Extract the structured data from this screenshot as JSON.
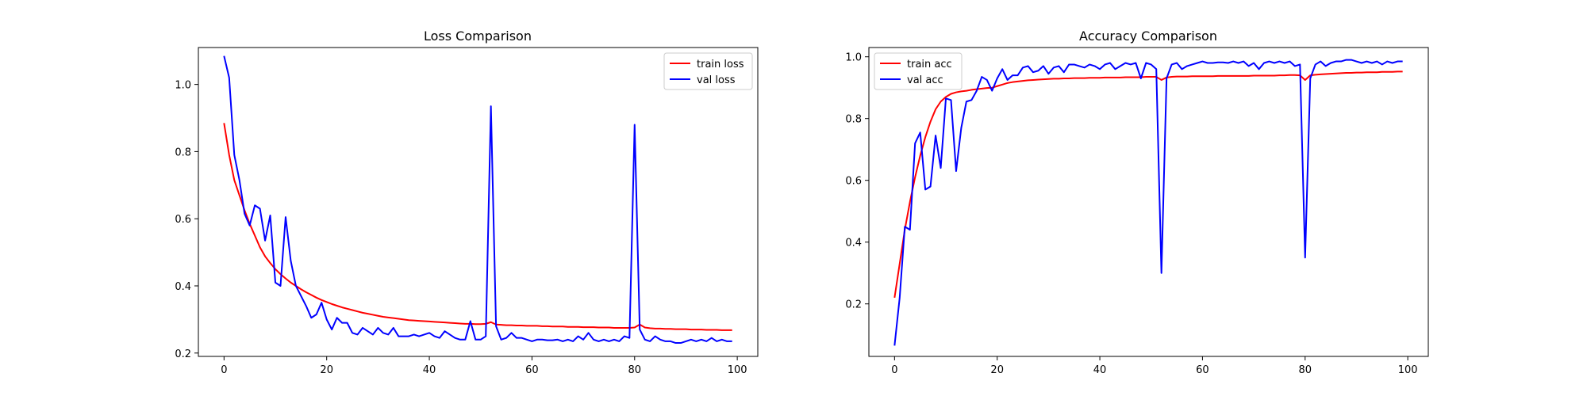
{
  "chart_data": [
    {
      "type": "line",
      "title": "Loss Comparison",
      "xlabel": "",
      "ylabel": "",
      "xlim": [
        -5,
        104
      ],
      "ylim": [
        0.19,
        1.11
      ],
      "xticks": [
        0,
        20,
        40,
        60,
        80,
        100
      ],
      "yticks": [
        0.2,
        0.4,
        0.6,
        0.8,
        1.0
      ],
      "xtick_labels": [
        "0",
        "20",
        "40",
        "60",
        "80",
        "100"
      ],
      "ytick_labels": [
        "0.2",
        "0.4",
        "0.6",
        "0.8",
        "1.0"
      ],
      "grid": false,
      "legend_position": "upper right",
      "series": [
        {
          "name": "train loss",
          "color": "#ff0000",
          "values": [
            0.885,
            0.79,
            0.715,
            0.67,
            0.625,
            0.585,
            0.55,
            0.515,
            0.488,
            0.468,
            0.45,
            0.435,
            0.422,
            0.41,
            0.4,
            0.39,
            0.381,
            0.373,
            0.365,
            0.358,
            0.352,
            0.346,
            0.341,
            0.336,
            0.332,
            0.328,
            0.324,
            0.32,
            0.317,
            0.314,
            0.311,
            0.308,
            0.306,
            0.304,
            0.302,
            0.3,
            0.298,
            0.297,
            0.296,
            0.295,
            0.294,
            0.293,
            0.292,
            0.291,
            0.29,
            0.289,
            0.288,
            0.287,
            0.287,
            0.286,
            0.286,
            0.287,
            0.292,
            0.285,
            0.284,
            0.283,
            0.283,
            0.282,
            0.282,
            0.281,
            0.281,
            0.281,
            0.28,
            0.28,
            0.279,
            0.279,
            0.279,
            0.278,
            0.278,
            0.278,
            0.277,
            0.277,
            0.277,
            0.276,
            0.276,
            0.276,
            0.275,
            0.275,
            0.275,
            0.275,
            0.276,
            0.285,
            0.276,
            0.274,
            0.273,
            0.273,
            0.272,
            0.272,
            0.271,
            0.271,
            0.271,
            0.27,
            0.27,
            0.27,
            0.269,
            0.269,
            0.269,
            0.268,
            0.268,
            0.268
          ]
        },
        {
          "name": "val loss",
          "color": "#0000ff",
          "values": [
            1.085,
            1.02,
            0.79,
            0.715,
            0.615,
            0.58,
            0.64,
            0.63,
            0.535,
            0.61,
            0.41,
            0.4,
            0.605,
            0.475,
            0.4,
            0.37,
            0.34,
            0.305,
            0.315,
            0.35,
            0.3,
            0.27,
            0.305,
            0.29,
            0.29,
            0.26,
            0.255,
            0.275,
            0.265,
            0.255,
            0.275,
            0.26,
            0.255,
            0.275,
            0.25,
            0.25,
            0.25,
            0.255,
            0.25,
            0.255,
            0.26,
            0.25,
            0.245,
            0.265,
            0.255,
            0.245,
            0.24,
            0.24,
            0.295,
            0.24,
            0.24,
            0.25,
            0.935,
            0.28,
            0.24,
            0.245,
            0.26,
            0.245,
            0.245,
            0.24,
            0.235,
            0.24,
            0.24,
            0.238,
            0.238,
            0.24,
            0.235,
            0.24,
            0.235,
            0.25,
            0.24,
            0.26,
            0.24,
            0.235,
            0.24,
            0.235,
            0.24,
            0.235,
            0.25,
            0.245,
            0.88,
            0.27,
            0.24,
            0.235,
            0.25,
            0.24,
            0.235,
            0.235,
            0.23,
            0.23,
            0.235,
            0.24,
            0.235,
            0.24,
            0.235,
            0.245,
            0.235,
            0.24,
            0.235,
            0.235
          ]
        }
      ]
    },
    {
      "type": "line",
      "title": "Accuracy Comparison",
      "xlabel": "",
      "ylabel": "",
      "xlim": [
        -5,
        104
      ],
      "ylim": [
        0.03,
        1.03
      ],
      "xticks": [
        0,
        20,
        40,
        60,
        80,
        100
      ],
      "yticks": [
        0.2,
        0.4,
        0.6,
        0.8,
        1.0
      ],
      "xtick_labels": [
        "0",
        "20",
        "40",
        "60",
        "80",
        "100"
      ],
      "ytick_labels": [
        "0.2",
        "0.4",
        "0.6",
        "0.8",
        "1.0"
      ],
      "grid": false,
      "legend_position": "upper left",
      "series": [
        {
          "name": "train acc",
          "color": "#ff0000",
          "values": [
            0.22,
            0.33,
            0.44,
            0.53,
            0.61,
            0.68,
            0.74,
            0.79,
            0.83,
            0.855,
            0.87,
            0.88,
            0.885,
            0.888,
            0.89,
            0.893,
            0.895,
            0.897,
            0.899,
            0.9,
            0.905,
            0.91,
            0.915,
            0.918,
            0.92,
            0.922,
            0.924,
            0.925,
            0.926,
            0.927,
            0.928,
            0.929,
            0.929,
            0.93,
            0.93,
            0.931,
            0.931,
            0.931,
            0.932,
            0.932,
            0.932,
            0.933,
            0.933,
            0.933,
            0.933,
            0.934,
            0.934,
            0.934,
            0.934,
            0.935,
            0.935,
            0.935,
            0.925,
            0.933,
            0.935,
            0.936,
            0.936,
            0.936,
            0.937,
            0.937,
            0.937,
            0.937,
            0.937,
            0.938,
            0.938,
            0.938,
            0.938,
            0.938,
            0.938,
            0.938,
            0.939,
            0.939,
            0.939,
            0.939,
            0.939,
            0.94,
            0.94,
            0.941,
            0.941,
            0.94,
            0.925,
            0.94,
            0.942,
            0.943,
            0.944,
            0.945,
            0.946,
            0.947,
            0.948,
            0.948,
            0.949,
            0.949,
            0.95,
            0.95,
            0.95,
            0.951,
            0.951,
            0.951,
            0.952,
            0.952
          ]
        },
        {
          "name": "val acc",
          "color": "#0000ff",
          "values": [
            0.065,
            0.22,
            0.45,
            0.44,
            0.72,
            0.755,
            0.57,
            0.58,
            0.745,
            0.64,
            0.865,
            0.86,
            0.63,
            0.77,
            0.855,
            0.86,
            0.89,
            0.935,
            0.925,
            0.89,
            0.93,
            0.96,
            0.925,
            0.94,
            0.94,
            0.965,
            0.97,
            0.95,
            0.955,
            0.97,
            0.945,
            0.965,
            0.97,
            0.95,
            0.975,
            0.975,
            0.97,
            0.965,
            0.975,
            0.97,
            0.96,
            0.975,
            0.98,
            0.96,
            0.97,
            0.98,
            0.975,
            0.98,
            0.93,
            0.98,
            0.975,
            0.96,
            0.3,
            0.93,
            0.975,
            0.98,
            0.96,
            0.97,
            0.975,
            0.98,
            0.985,
            0.98,
            0.98,
            0.982,
            0.982,
            0.98,
            0.985,
            0.98,
            0.985,
            0.97,
            0.98,
            0.96,
            0.98,
            0.985,
            0.98,
            0.985,
            0.98,
            0.985,
            0.97,
            0.975,
            0.35,
            0.93,
            0.975,
            0.985,
            0.97,
            0.98,
            0.985,
            0.985,
            0.99,
            0.99,
            0.985,
            0.98,
            0.985,
            0.98,
            0.985,
            0.975,
            0.985,
            0.98,
            0.985,
            0.985
          ]
        }
      ]
    }
  ]
}
